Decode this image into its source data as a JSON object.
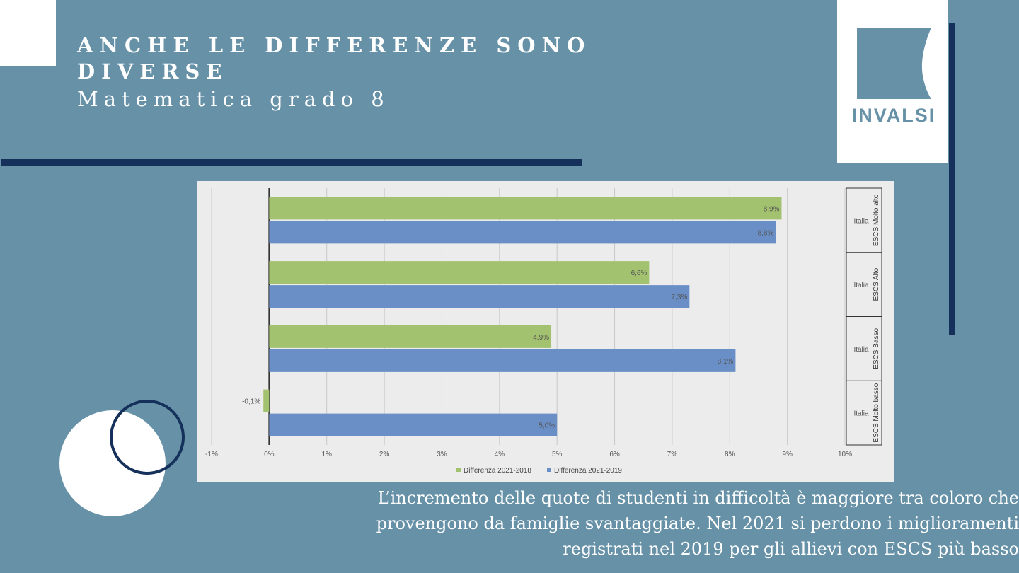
{
  "slide": {
    "title_line1": "ANCHE LE DIFFERENZE SONO",
    "title_line2": "DIVERSE",
    "subtitle": "Matematica grado 8",
    "caption_lines": [
      "L’incremento delle quote di studenti in difficoltà è maggiore tra coloro che",
      "provengono da famiglie svantaggiate. Nel 2021 si perdono i miglioramenti",
      "registrati nel 2019 per gli allievi con ESCS più basso"
    ]
  },
  "logo": {
    "text": "INVALSI",
    "color": "#6691a7"
  },
  "colors": {
    "background": "#6691a7",
    "accent_dark": "#15305a",
    "series_green": "#a3c26f",
    "series_blue": "#6a8fc7"
  },
  "chart_data": {
    "type": "bar",
    "orientation": "horizontal",
    "categories": [
      {
        "group": "ESCS Molto alto",
        "label": "Italia"
      },
      {
        "group": "ESCS Alto",
        "label": "Italia"
      },
      {
        "group": "ESCS Basso",
        "label": "Italia"
      },
      {
        "group": "ESCS Molto basso",
        "label": "Italia"
      }
    ],
    "series": [
      {
        "name": "Differenza 2021-2018",
        "color": "#a3c26f",
        "values": [
          8.9,
          6.6,
          4.9,
          -0.1
        ],
        "labels": [
          "8,9%",
          "6,6%",
          "4,9%",
          "-0,1%"
        ]
      },
      {
        "name": "Differenza 2021-2019",
        "color": "#6a8fc7",
        "values": [
          8.8,
          7.3,
          8.1,
          5.0
        ],
        "labels": [
          "8,8%",
          "7,3%",
          "8,1%",
          "5,0%"
        ]
      }
    ],
    "xlim": [
      -1,
      10
    ],
    "xticks": [
      -1,
      0,
      1,
      2,
      3,
      4,
      5,
      6,
      7,
      8,
      9,
      10
    ],
    "xtick_labels": [
      "-1%",
      "0%",
      "1%",
      "2%",
      "3%",
      "4%",
      "5%",
      "6%",
      "7%",
      "8%",
      "9%",
      "10%"
    ],
    "legend_position": "bottom",
    "grid": true,
    "title": "",
    "xlabel": "",
    "ylabel": ""
  }
}
